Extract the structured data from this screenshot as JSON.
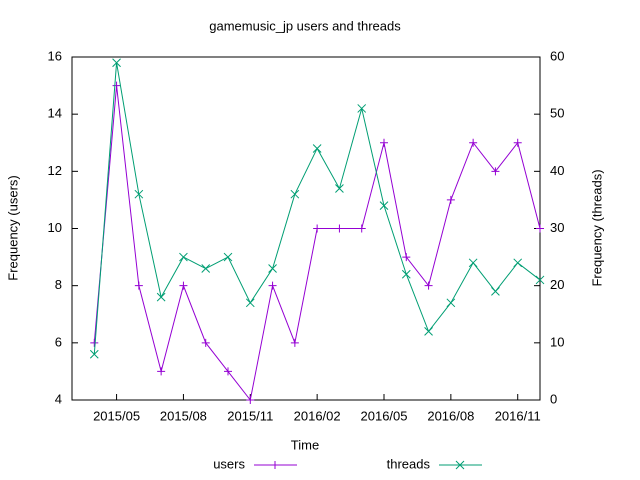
{
  "chart_data": {
    "type": "line",
    "title": "gamemusic_jp users and threads",
    "xlabel": "Time",
    "ylabel": "Frequency (users)",
    "y2label": "Frequency (threads)",
    "x": [
      "2015/04",
      "2015/05",
      "2015/06",
      "2015/07",
      "2015/08",
      "2015/09",
      "2015/10",
      "2015/11",
      "2015/12",
      "2016/01",
      "2016/02",
      "2016/03",
      "2016/04",
      "2016/05",
      "2016/06",
      "2016/07",
      "2016/08",
      "2016/09",
      "2016/10",
      "2016/11",
      "2016/12"
    ],
    "xlim": [
      "2015/03",
      "2016/12"
    ],
    "xticks": [
      "2015/05",
      "2015/08",
      "2015/11",
      "2016/02",
      "2016/05",
      "2016/08",
      "2016/11"
    ],
    "ylim": [
      4,
      16
    ],
    "yticks": [
      4,
      6,
      8,
      10,
      12,
      14,
      16
    ],
    "y2lim": [
      0,
      60
    ],
    "y2ticks": [
      0,
      10,
      20,
      30,
      40,
      50,
      60
    ],
    "legend": "bottom",
    "series": [
      {
        "name": "users",
        "color": "#9400d3",
        "marker": "+",
        "values": [
          6,
          15,
          8,
          5,
          8,
          6,
          5,
          4,
          8,
          6,
          10,
          10,
          10,
          13,
          9,
          8,
          11,
          13,
          12,
          13,
          10
        ]
      },
      {
        "name": "threads",
        "color": "#009e73",
        "marker": "x",
        "axis": "y2",
        "values": [
          8,
          59,
          36,
          18,
          25,
          23,
          25,
          17,
          23,
          36,
          44,
          37,
          51,
          34,
          22,
          12,
          17,
          24,
          19,
          24,
          21
        ]
      }
    ]
  }
}
